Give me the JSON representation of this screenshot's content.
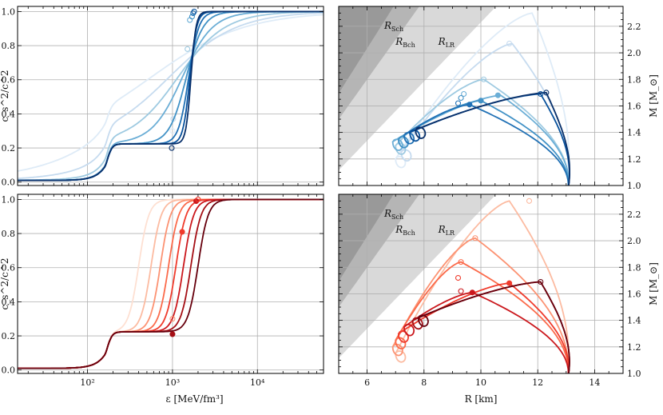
{
  "chart_data": [
    {
      "id": "top-left",
      "type": "line",
      "colormap": "Blues",
      "xscale": "log",
      "xlim": [
        15,
        60000
      ],
      "ylim": [
        -0.02,
        1.03
      ],
      "ylabel": "c_s^2/c^2",
      "yticks": [
        0.0,
        0.2,
        0.4,
        0.6,
        0.8,
        1.0
      ],
      "ytick_labels": [
        "0.0",
        "0.2",
        "0.4",
        "0.6",
        "0.8",
        "1.0"
      ],
      "series": [
        {
          "name": "s1",
          "color": "#deebf7",
          "plateau": 0.2,
          "transition_center": 550,
          "transition_width": 0.55,
          "marker_open": [
            1000,
            0.3
          ]
        },
        {
          "name": "s2",
          "color": "#c6dbef",
          "plateau": 0.2,
          "transition_center": 900,
          "transition_width": 0.4,
          "marker_open": [
            1020,
            0.37
          ]
        },
        {
          "name": "s3",
          "color": "#9ecae1",
          "plateau": 0.2,
          "transition_center": 1150,
          "transition_width": 0.28,
          "marker_open": [
            1500,
            0.78
          ]
        },
        {
          "name": "s4",
          "color": "#6baed6",
          "plateau": 0.2,
          "transition_center": 1300,
          "transition_width": 0.18,
          "marker_open": [
            1600,
            0.95
          ]
        },
        {
          "name": "s5",
          "color": "#4292c6",
          "plateau": 0.2,
          "transition_center": 1450,
          "transition_width": 0.1,
          "marker_open": [
            1700,
            0.97
          ]
        },
        {
          "name": "s6",
          "color": "#2171b5",
          "plateau": 0.2,
          "transition_center": 1550,
          "transition_width": 0.06,
          "marker_open": [
            1750,
            0.99
          ]
        },
        {
          "name": "s7",
          "color": "#08519c",
          "plateau": 0.2,
          "transition_center": 1600,
          "transition_width": 0.04,
          "marker_open": [
            1800,
            1.0
          ]
        },
        {
          "name": "s8",
          "color": "#08306b",
          "plateau": 0.2,
          "transition_center": 1650,
          "transition_width": 0.03,
          "marker_open": [
            980,
            0.2
          ]
        }
      ]
    },
    {
      "id": "bottom-left",
      "type": "line",
      "colormap": "Reds",
      "xscale": "log",
      "xlim": [
        15,
        60000
      ],
      "ylim": [
        -0.02,
        1.03
      ],
      "xlabel": "ε [MeV/fm³]",
      "ylabel": "c_s^2/c^2",
      "xticks": [
        100,
        1000,
        10000
      ],
      "xtick_labels": [
        "10²",
        "10³",
        "10⁴"
      ],
      "yticks": [
        0.0,
        0.2,
        0.4,
        0.6,
        0.8,
        1.0
      ],
      "ytick_labels": [
        "0.0",
        "0.2",
        "0.4",
        "0.6",
        "0.8",
        "1.0"
      ],
      "series": [
        {
          "name": "s1",
          "color": "#fee0d2",
          "plateau": 0.2,
          "transition_center": 400
        },
        {
          "name": "s2",
          "color": "#fcbba1",
          "plateau": 0.2,
          "transition_center": 560
        },
        {
          "name": "s3",
          "color": "#fc9272",
          "plateau": 0.2,
          "transition_center": 720
        },
        {
          "name": "s4",
          "color": "#fb6a4a",
          "plateau": 0.2,
          "transition_center": 900
        },
        {
          "name": "s5",
          "color": "#ef3b2c",
          "plateau": 0.2,
          "transition_center": 1100
        },
        {
          "name": "s6",
          "color": "#cb181d",
          "plateau": 0.2,
          "transition_center": 1350
        },
        {
          "name": "s7",
          "color": "#a50f15",
          "plateau": 0.2,
          "transition_center": 1650
        },
        {
          "name": "s8",
          "color": "#67000d",
          "plateau": 0.2,
          "transition_center": 2000
        }
      ],
      "markers": [
        {
          "x": 1000,
          "y": 0.21,
          "filled": true,
          "color": "#a50f15"
        },
        {
          "x": 1000,
          "y": 0.3,
          "filled": false,
          "color": "#fc9272"
        },
        {
          "x": 1300,
          "y": 0.81,
          "filled": true,
          "color": "#ef3b2c"
        },
        {
          "x": 1900,
          "y": 0.99,
          "filled": true,
          "color": "#cb181d"
        },
        {
          "x": 2000,
          "y": 1.0,
          "filled": false,
          "color": "#ef3b2c"
        }
      ]
    },
    {
      "id": "top-right",
      "type": "line",
      "colormap": "Blues",
      "xlim": [
        5,
        15
      ],
      "ylim": [
        1.0,
        2.35
      ],
      "ylabel": "M [M_⊙]",
      "yaxis_side": "right",
      "yticks": [
        1.0,
        1.2,
        1.4,
        1.6,
        1.8,
        2.0,
        2.2
      ],
      "ytick_labels": [
        "1.0",
        "1.2",
        "1.4",
        "1.6",
        "1.8",
        "2.0",
        "2.2"
      ],
      "regions": [
        "R_Sch",
        "R_Bch",
        "R_LR"
      ],
      "series": [
        {
          "name": "s1",
          "color": "#deebf7",
          "r_max": 11.8,
          "m_max": 2.3,
          "r_min": 7.0,
          "m_min": 1.2
        },
        {
          "name": "s2",
          "color": "#c6dbef",
          "r_max": 11.1,
          "m_max": 2.07,
          "r_min": 7.2,
          "m_min": 1.25
        },
        {
          "name": "s3",
          "color": "#9ecae1",
          "r_max": 10.1,
          "m_max": 1.8,
          "r_min": 7.0,
          "m_min": 1.3
        },
        {
          "name": "s4",
          "color": "#6baed6",
          "r_max": 10.7,
          "m_max": 1.68,
          "r_min": 6.9,
          "m_min": 1.33
        },
        {
          "name": "s5",
          "color": "#4292c6",
          "r_max": 10.0,
          "m_max": 1.64,
          "r_min": 7.1,
          "m_min": 1.35
        },
        {
          "name": "s6",
          "color": "#2171b5",
          "r_max": 9.6,
          "m_max": 1.61,
          "r_min": 7.3,
          "m_min": 1.38
        },
        {
          "name": "s7",
          "color": "#08519c",
          "r_max": 12.1,
          "m_max": 1.69,
          "r_min": 7.5,
          "m_min": 1.4
        },
        {
          "name": "s8",
          "color": "#08306b",
          "r_max": 12.3,
          "m_max": 1.7,
          "r_min": 7.7,
          "m_min": 1.42
        }
      ],
      "markers": [
        {
          "r": 9.4,
          "m": 1.69,
          "filled": false,
          "color": "#6baed6"
        },
        {
          "r": 9.3,
          "m": 1.66,
          "filled": false,
          "color": "#4292c6"
        },
        {
          "r": 9.2,
          "m": 1.62,
          "filled": false,
          "color": "#2171b5"
        },
        {
          "r": 10.6,
          "m": 1.68,
          "filled": true,
          "color": "#6baed6"
        },
        {
          "r": 10.0,
          "m": 1.64,
          "filled": true,
          "color": "#4292c6"
        },
        {
          "r": 9.6,
          "m": 1.61,
          "filled": true,
          "color": "#2171b5"
        },
        {
          "r": 11.0,
          "m": 2.07,
          "filled": false,
          "color": "#c6dbef"
        },
        {
          "r": 10.1,
          "m": 1.8,
          "filled": false,
          "color": "#9ecae1"
        },
        {
          "r": 12.1,
          "m": 1.69,
          "filled": false,
          "color": "#08519c"
        },
        {
          "r": 12.3,
          "m": 1.7,
          "filled": false,
          "color": "#08306b"
        }
      ]
    },
    {
      "id": "bottom-right",
      "type": "line",
      "colormap": "Reds",
      "xlim": [
        5,
        15
      ],
      "ylim": [
        1.0,
        2.35
      ],
      "xlabel": "R [km]",
      "ylabel": "M [M_⊙]",
      "yaxis_side": "right",
      "xticks": [
        6,
        8,
        10,
        12,
        14
      ],
      "xtick_labels": [
        "6",
        "8",
        "10",
        "12",
        "14"
      ],
      "yticks": [
        1.0,
        1.2,
        1.4,
        1.6,
        1.8,
        2.0,
        2.2
      ],
      "ytick_labels": [
        "1.0",
        "1.2",
        "1.4",
        "1.6",
        "1.8",
        "2.0",
        "2.2"
      ],
      "regions": [
        "R_Sch",
        "R_Bch",
        "R_LR"
      ],
      "series": [
        {
          "name": "s1",
          "color": "#fcbba1",
          "r_max": 11.0,
          "m_max": 2.3,
          "r_min": 7.0,
          "m_min": 1.15
        },
        {
          "name": "s2",
          "color": "#fc9272",
          "r_max": 9.8,
          "m_max": 2.02,
          "r_min": 6.9,
          "m_min": 1.2
        },
        {
          "name": "s3",
          "color": "#fb6a4a",
          "r_max": 9.3,
          "m_max": 1.84,
          "r_min": 7.0,
          "m_min": 1.25
        },
        {
          "name": "s4",
          "color": "#ef3b2c",
          "r_max": 11.0,
          "m_max": 1.68,
          "r_min": 7.1,
          "m_min": 1.3
        },
        {
          "name": "s5",
          "color": "#cb181d",
          "r_max": 9.7,
          "m_max": 1.61,
          "r_min": 7.3,
          "m_min": 1.35
        },
        {
          "name": "s6",
          "color": "#a50f15",
          "r_max": 12.1,
          "m_max": 1.69,
          "r_min": 7.6,
          "m_min": 1.4
        },
        {
          "name": "s7",
          "color": "#67000d",
          "r_max": 12.1,
          "m_max": 1.69,
          "r_min": 7.8,
          "m_min": 1.42
        }
      ],
      "markers": [
        {
          "r": 9.2,
          "m": 1.72,
          "filled": false,
          "color": "#ef3b2c"
        },
        {
          "r": 9.3,
          "m": 1.62,
          "filled": false,
          "color": "#cb181d"
        },
        {
          "r": 11.0,
          "m": 1.68,
          "filled": true,
          "color": "#ef3b2c"
        },
        {
          "r": 9.7,
          "m": 1.61,
          "filled": true,
          "color": "#cb181d"
        },
        {
          "r": 9.8,
          "m": 2.02,
          "filled": false,
          "color": "#fc9272"
        },
        {
          "r": 9.3,
          "m": 1.84,
          "filled": false,
          "color": "#fb6a4a"
        },
        {
          "r": 11.7,
          "m": 2.3,
          "filled": false,
          "color": "#fcbba1"
        },
        {
          "r": 12.1,
          "m": 1.69,
          "filled": false,
          "color": "#67000d"
        }
      ]
    }
  ]
}
